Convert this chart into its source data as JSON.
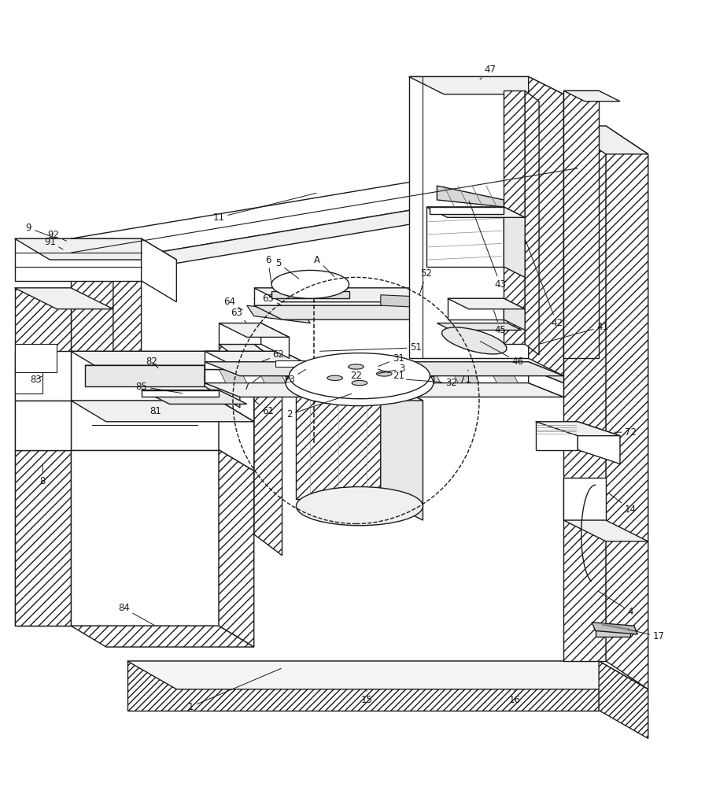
{
  "bg_color": "#ffffff",
  "line_color": "#1a1a1a",
  "fig_width": 8.96,
  "fig_height": 10.0,
  "dpi": 100
}
